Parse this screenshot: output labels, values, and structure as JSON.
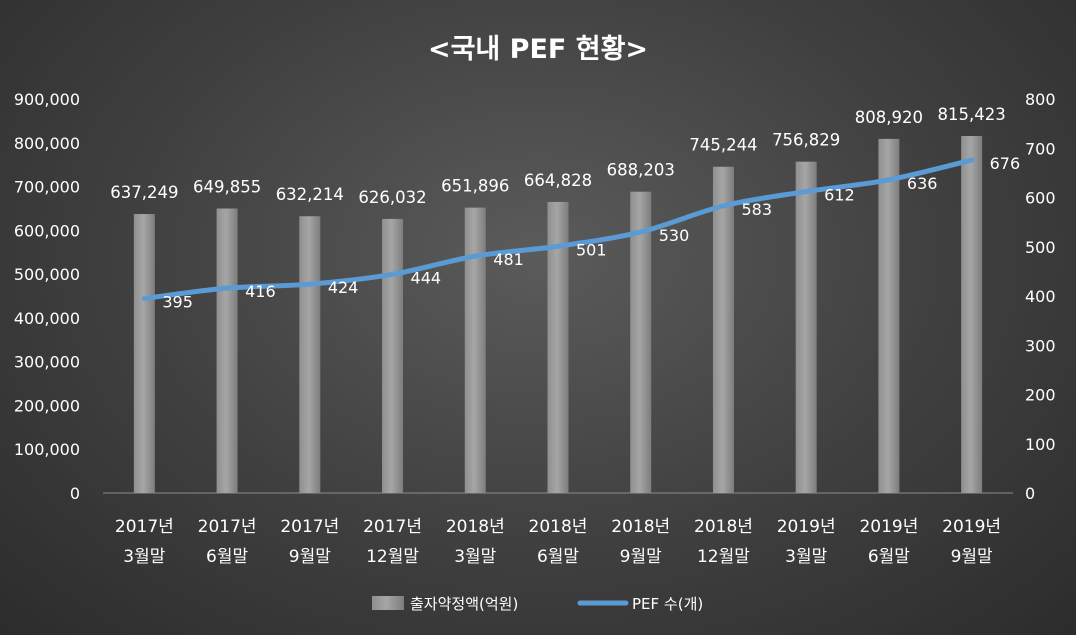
{
  "chart_data": {
    "type": "bar+line",
    "title": "<국내 PEF 현황>",
    "categories": [
      [
        "2017년",
        "3월말"
      ],
      [
        "2017년",
        "6월말"
      ],
      [
        "2017년",
        "9월말"
      ],
      [
        "2017년",
        "12월말"
      ],
      [
        "2018년",
        "3월말"
      ],
      [
        "2018년",
        "6월말"
      ],
      [
        "2018년",
        "9월말"
      ],
      [
        "2018년",
        "12월말"
      ],
      [
        "2019년",
        "3월말"
      ],
      [
        "2019년",
        "6월말"
      ],
      [
        "2019년",
        "9월말"
      ]
    ],
    "series": [
      {
        "name": "출자약정액(억원)",
        "type": "bar",
        "axis": "left",
        "values": [
          637249,
          649855,
          632214,
          626032,
          651896,
          664828,
          688203,
          745244,
          756829,
          808920,
          815423
        ],
        "labels": [
          "637,249",
          "649,855",
          "632,214",
          "626,032",
          "651,896",
          "664,828",
          "688,203",
          "745,244",
          "756,829",
          "808,920",
          "815,423"
        ],
        "color": "#a6a6a6"
      },
      {
        "name": "PEF 수(개)",
        "type": "line",
        "axis": "right",
        "values": [
          395,
          416,
          424,
          444,
          481,
          501,
          530,
          583,
          612,
          636,
          676
        ],
        "labels": [
          "395",
          "416",
          "424",
          "444",
          "481",
          "501",
          "530",
          "583",
          "612",
          "636",
          "676"
        ],
        "color": "#5b9bd5"
      }
    ],
    "y_left": {
      "range": [
        0,
        900000
      ],
      "ticks": [
        0,
        100000,
        200000,
        300000,
        400000,
        500000,
        600000,
        700000,
        800000,
        900000
      ],
      "tick_labels": [
        "0",
        "100,000",
        "200,000",
        "300,000",
        "400,000",
        "500,000",
        "600,000",
        "700,000",
        "800,000",
        "900,000"
      ]
    },
    "y_right": {
      "range": [
        0,
        800
      ],
      "ticks": [
        0,
        100,
        200,
        300,
        400,
        500,
        600,
        700,
        800
      ],
      "tick_labels": [
        "0",
        "100",
        "200",
        "300",
        "400",
        "500",
        "600",
        "700",
        "800"
      ]
    },
    "grid": false,
    "legend": "bottom-center"
  }
}
